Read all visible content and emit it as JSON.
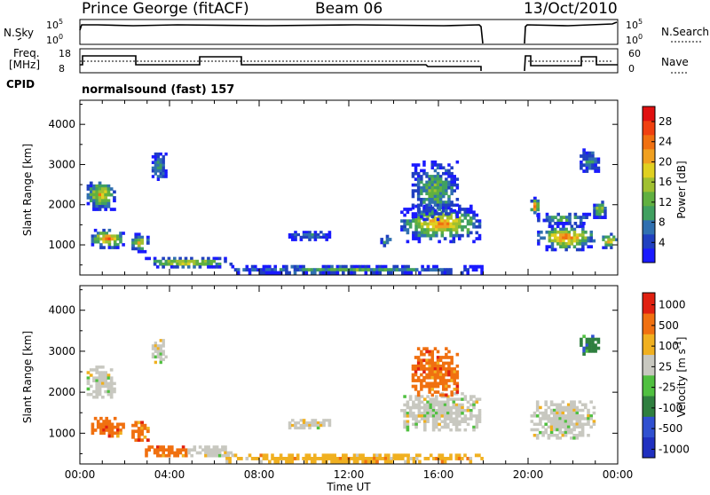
{
  "header": {
    "station": "Prince George (fitACF)",
    "beam": "Beam 06",
    "date": "13/Oct/2010"
  },
  "panels": {
    "nsky": {
      "label": "N.Sky",
      "ticks_left": [
        "10^5",
        "10^0"
      ],
      "ticks_right": [
        "10^5",
        "10^0"
      ],
      "right_label": "N.Search"
    },
    "freq": {
      "label_line1": "Freq.",
      "label_line2": "[MHz]",
      "ticks_left": [
        "18",
        "8"
      ],
      "ticks_right": [
        "60",
        "0"
      ],
      "right_label": "Nave"
    },
    "cpid": {
      "label": "CPID",
      "value": "normalsound (fast) 157"
    }
  },
  "chart_data": [
    {
      "type": "heatmap",
      "name": "power",
      "ylabel": "Slant Range [km]",
      "xlabel": "",
      "ylim": [
        250,
        4600
      ],
      "yticks": [
        1000,
        2000,
        3000,
        4000
      ],
      "colorbar": {
        "label": "Power [dB]",
        "ticks": [
          "4",
          "8",
          "12",
          "16",
          "20",
          "24",
          "28"
        ],
        "range": [
          0,
          31
        ]
      },
      "colors": [
        "#1a1aff",
        "#2040c0",
        "#3070b0",
        "#40a060",
        "#60b040",
        "#a0c030",
        "#e0d020",
        "#f0a020",
        "#f07010",
        "#f04010",
        "#e01010"
      ],
      "regions": [
        {
          "t0": 0.3,
          "t1": 1.6,
          "r0": 1850,
          "r1": 2650,
          "level": 22
        },
        {
          "t0": 0.5,
          "t1": 2.0,
          "r0": 900,
          "r1": 1400,
          "level": 26
        },
        {
          "t0": 2.3,
          "t1": 3.1,
          "r0": 800,
          "r1": 1300,
          "level": 20
        },
        {
          "t0": 2.9,
          "t1": 6.8,
          "r0": 420,
          "r1": 700,
          "level": 22
        },
        {
          "t0": 3.2,
          "t1": 3.9,
          "r0": 2600,
          "r1": 3300,
          "level": 12
        },
        {
          "t0": 9.3,
          "t1": 11.2,
          "r0": 1100,
          "r1": 1350,
          "level": 10
        },
        {
          "t0": 13.4,
          "t1": 13.9,
          "r0": 950,
          "r1": 1250,
          "level": 14
        },
        {
          "t0": 14.3,
          "t1": 17.9,
          "r0": 1050,
          "r1": 2000,
          "level": 24
        },
        {
          "t0": 14.8,
          "t1": 16.9,
          "r0": 1600,
          "r1": 3100,
          "level": 14
        },
        {
          "t0": 20.1,
          "t1": 20.5,
          "r0": 1700,
          "r1": 2200,
          "level": 26
        },
        {
          "t0": 20.4,
          "t1": 23.0,
          "r0": 850,
          "r1": 1500,
          "level": 26
        },
        {
          "t0": 20.4,
          "t1": 22.8,
          "r0": 1500,
          "r1": 1800,
          "level": 14
        },
        {
          "t0": 22.9,
          "t1": 23.5,
          "r0": 1650,
          "r1": 2100,
          "level": 18
        },
        {
          "t0": 23.3,
          "t1": 24.0,
          "r0": 900,
          "r1": 1300,
          "level": 24
        },
        {
          "t0": 22.3,
          "t1": 23.2,
          "r0": 2800,
          "r1": 3400,
          "level": 10
        },
        {
          "t0": 6.5,
          "t1": 18.0,
          "r0": 270,
          "r1": 500,
          "level": 12
        }
      ]
    },
    {
      "type": "heatmap",
      "name": "velocity",
      "ylabel": "Slant Range [km]",
      "xlabel": "Time UT",
      "ylim": [
        250,
        4600
      ],
      "yticks": [
        1000,
        2000,
        3000,
        4000
      ],
      "xticks": [
        "00:00",
        "04:00",
        "08:00",
        "12:00",
        "16:00",
        "20:00",
        "00:00"
      ],
      "colorbar": {
        "label": "Velocity [m s-1]",
        "ticks": [
          "1000",
          "500",
          "100",
          "25",
          "-25",
          "-100",
          "-500",
          "-1000"
        ]
      },
      "colors": [
        "#2030c0",
        "#3050d0",
        "#2f7f3f",
        "#50c040",
        "#c8c8c0",
        "#f0b020",
        "#f07010",
        "#e02010"
      ],
      "regions": [
        {
          "t0": 0.3,
          "t1": 1.6,
          "r0": 1850,
          "r1": 2650,
          "level": 4
        },
        {
          "t0": 0.5,
          "t1": 2.0,
          "r0": 900,
          "r1": 1400,
          "level": 6
        },
        {
          "t0": 2.3,
          "t1": 3.1,
          "r0": 800,
          "r1": 1300,
          "level": 6
        },
        {
          "t0": 2.9,
          "t1": 4.8,
          "r0": 420,
          "r1": 700,
          "level": 6
        },
        {
          "t0": 4.8,
          "t1": 6.8,
          "r0": 420,
          "r1": 700,
          "level": 4
        },
        {
          "t0": 3.2,
          "t1": 3.9,
          "r0": 2700,
          "r1": 3300,
          "level": 4
        },
        {
          "t0": 9.3,
          "t1": 11.2,
          "r0": 1100,
          "r1": 1350,
          "level": 4
        },
        {
          "t0": 14.3,
          "t1": 17.9,
          "r0": 1050,
          "r1": 2000,
          "level": 4
        },
        {
          "t0": 14.8,
          "t1": 16.9,
          "r0": 1900,
          "r1": 3100,
          "level": 6
        },
        {
          "t0": 20.1,
          "t1": 23.0,
          "r0": 850,
          "r1": 1800,
          "level": 4
        },
        {
          "t0": 22.3,
          "t1": 23.2,
          "r0": 2900,
          "r1": 3400,
          "level": 2
        },
        {
          "t0": 6.5,
          "t1": 18.0,
          "r0": 270,
          "r1": 500,
          "level": 5
        }
      ]
    }
  ]
}
